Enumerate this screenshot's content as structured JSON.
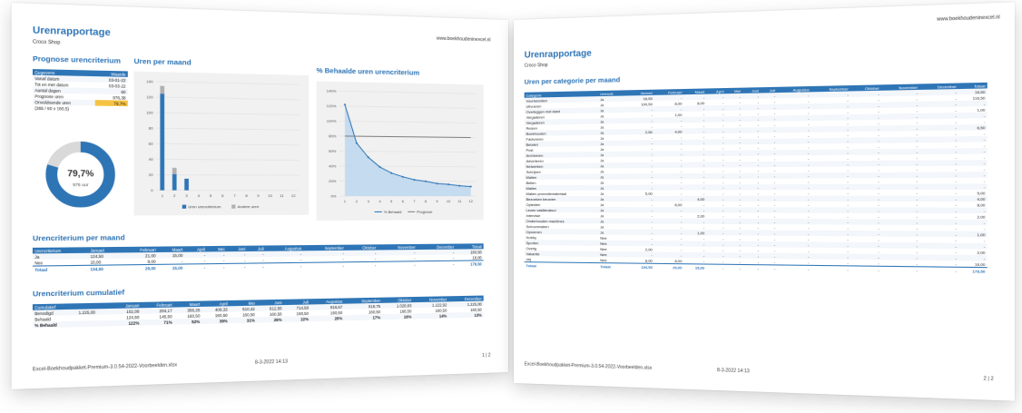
{
  "page1": {
    "title": "Urenrapportage",
    "company": "Croco Shop",
    "url": "www.boekhoudeninexcel.nl",
    "prognose_title": "Prognose urencriterium",
    "prognose_table": {
      "head": [
        "Gegevens",
        "Waarde"
      ],
      "rows": [
        [
          "Vanaf datum",
          "03-01-22"
        ],
        [
          "Tot en met datum",
          "03-03-22"
        ],
        [
          "Aantal dagen",
          "60"
        ],
        [
          "Prognose uren",
          "976,38"
        ],
        [
          "Onvoldoende uren",
          "79,7%"
        ],
        [
          "(365 / 60 x 160,5)",
          ""
        ]
      ]
    },
    "donut": {
      "percent_label": "79,7%",
      "sub_label": "976 uur",
      "fraction": 0.797,
      "color": "#2e75b6"
    },
    "chart1": {
      "title": "Uren per maand",
      "chart_data": {
        "type": "bar",
        "categories": [
          "1",
          "2",
          "3",
          "4",
          "5",
          "6",
          "7",
          "8",
          "9",
          "10",
          "11",
          "12"
        ],
        "yticks": [
          "0",
          "20",
          "40",
          "60",
          "80",
          "100",
          "120",
          "140"
        ],
        "ylim": [
          0,
          140
        ],
        "series": [
          {
            "name": "Uren urencriterium",
            "values": [
              124.5,
              21.0,
              15.0,
              0,
              0,
              0,
              0,
              0,
              0,
              0,
              0,
              0
            ],
            "color": "#2e75b6"
          },
          {
            "name": "Andere uren",
            "values": [
              10.0,
              8.0,
              0,
              0,
              0,
              0,
              0,
              0,
              0,
              0,
              0,
              0
            ],
            "color": "#b0b0b0"
          },
          {
            "name": "",
            "values": [
              0,
              0,
              0,
              0,
              0,
              0,
              0,
              0,
              0,
              0,
              0,
              0
            ],
            "color": "#c0504d"
          }
        ],
        "legend": "bottom"
      }
    },
    "chart2": {
      "title": "% Behaalde uren urencriterium",
      "chart_data": {
        "type": "area",
        "categories": [
          "1",
          "2",
          "3",
          "4",
          "5",
          "6",
          "7",
          "8",
          "9",
          "10",
          "11",
          "12"
        ],
        "yticks": [
          "0%",
          "20%",
          "40%",
          "60%",
          "80%",
          "100%",
          "120%",
          "140%"
        ],
        "ylim": [
          0,
          140
        ],
        "series": [
          {
            "name": "% Behaald",
            "values": [
              122,
              71,
              52,
              39,
              31,
              26,
              22,
              20,
              17,
              16,
              14,
              13
            ],
            "color": "#2e75b6"
          },
          {
            "name": "Prognose",
            "values": [
              80,
              80,
              80,
              80,
              80,
              80,
              80,
              80,
              80,
              80,
              80,
              80
            ],
            "color": "#7f7f7f"
          }
        ],
        "legend": "bottom"
      }
    },
    "per_maand_title": "Urencriterium per maand",
    "per_maand": {
      "head": [
        "Urencriterium",
        "Januari",
        "Februari",
        "Maart",
        "April",
        "Mei",
        "Juni",
        "Juli",
        "Augustus",
        "September",
        "Oktober",
        "November",
        "December",
        "Totaal"
      ],
      "rows": [
        [
          "Ja",
          "124,50",
          "21,00",
          "15,00",
          "-",
          "-",
          "-",
          "-",
          "-",
          "-",
          "-",
          "-",
          "-",
          "160,50"
        ],
        [
          "Nee",
          "10,00",
          "8,00",
          "-",
          "-",
          "-",
          "-",
          "-",
          "-",
          "-",
          "-",
          "-",
          "-",
          "18,00"
        ]
      ],
      "total": [
        "Totaal",
        "134,50",
        "29,00",
        "15,00",
        "-",
        "-",
        "-",
        "-",
        "-",
        "-",
        "-",
        "-",
        "-",
        "178,50"
      ]
    },
    "cumulatief_title": "Urencriterium cumulatief",
    "cumulatief": {
      "head": [
        "Cumulatief",
        "",
        "Januari",
        "Februari",
        "Maart",
        "April",
        "Mei",
        "Juni",
        "Juli",
        "Augustus",
        "September",
        "Oktober",
        "November",
        "December"
      ],
      "rows": [
        [
          "Benodigd",
          "1.225,00",
          "102,08",
          "204,17",
          "306,25",
          "408,33",
          "510,42",
          "612,50",
          "714,58",
          "816,67",
          "918,75",
          "1.020,83",
          "1.122,92",
          "1.225,00"
        ],
        [
          "Behaald",
          "",
          "124,50",
          "145,50",
          "160,50",
          "160,50",
          "160,50",
          "160,50",
          "160,50",
          "160,50",
          "160,50",
          "160,50",
          "160,50",
          "160,50"
        ],
        [
          "% Behaald",
          "",
          "122%",
          "71%",
          "52%",
          "39%",
          "31%",
          "26%",
          "22%",
          "20%",
          "17%",
          "16%",
          "14%",
          "13%"
        ]
      ]
    },
    "footer": {
      "file": "Excel-Boekhoudpakket-Premium-3.0.54-2022-Voorbeelden.xlsx",
      "date": "8-3-2022 14:13",
      "page": "1 | 2"
    }
  },
  "page2": {
    "title": "Urenrapportage",
    "company": "Croco Shop",
    "url": "www.boekhoudeninexcel.nl",
    "section": "Uren per categorie per maand",
    "table": {
      "head": [
        "Categorie",
        "Urencrit.",
        "Januari",
        "Februari",
        "Maart",
        "April",
        "Mei",
        "Juni",
        "Juli",
        "Augustus",
        "September",
        "Oktober",
        "November",
        "December",
        "Totaal"
      ],
      "rows": [
        [
          "Voorbereiden",
          "Ja",
          "16,50",
          "-",
          "-",
          "-",
          "-",
          "-",
          "-",
          "-",
          "-",
          "-",
          "-",
          "-",
          "16,50"
        ],
        [
          "Uitvoeren",
          "Ja",
          "100,50",
          "8,00",
          "8,00",
          "-",
          "-",
          "-",
          "-",
          "-",
          "-",
          "-",
          "-",
          "-",
          "116,50"
        ],
        [
          "Overleggen met klant",
          "Ja",
          "-",
          "-",
          "-",
          "-",
          "-",
          "-",
          "-",
          "-",
          "-",
          "-",
          "-",
          "-",
          "-"
        ],
        [
          "Vergaderen",
          "Ja",
          "-",
          "1,00",
          "-",
          "-",
          "-",
          "-",
          "-",
          "-",
          "-",
          "-",
          "-",
          "-",
          "1,00"
        ],
        [
          "Vergaderen",
          "Ja",
          "-",
          "-",
          "-",
          "-",
          "-",
          "-",
          "-",
          "-",
          "-",
          "-",
          "-",
          "-",
          "-"
        ],
        [
          "Reizen",
          "Ja",
          "-",
          "-",
          "-",
          "-",
          "-",
          "-",
          "-",
          "-",
          "-",
          "-",
          "-",
          "-",
          "-"
        ],
        [
          "Boekhouden",
          "Ja",
          "2,50",
          "4,00",
          "-",
          "-",
          "-",
          "-",
          "-",
          "-",
          "-",
          "-",
          "-",
          "-",
          "6,50"
        ],
        [
          "Factureren",
          "Ja",
          "-",
          "-",
          "-",
          "-",
          "-",
          "-",
          "-",
          "-",
          "-",
          "-",
          "-",
          "-",
          "-"
        ],
        [
          "Betalen",
          "Ja",
          "-",
          "-",
          "-",
          "-",
          "-",
          "-",
          "-",
          "-",
          "-",
          "-",
          "-",
          "-",
          "-"
        ],
        [
          "Post",
          "Ja",
          "-",
          "-",
          "-",
          "-",
          "-",
          "-",
          "-",
          "-",
          "-",
          "-",
          "-",
          "-",
          "-"
        ],
        [
          "Archiveren",
          "Ja",
          "-",
          "-",
          "-",
          "-",
          "-",
          "-",
          "-",
          "-",
          "-",
          "-",
          "-",
          "-",
          "-"
        ],
        [
          "Adverteren",
          "Ja",
          "-",
          "-",
          "-",
          "-",
          "-",
          "-",
          "-",
          "-",
          "-",
          "-",
          "-",
          "-",
          "-"
        ],
        [
          "Netwerken",
          "Ja",
          "-",
          "-",
          "-",
          "-",
          "-",
          "-",
          "-",
          "-",
          "-",
          "-",
          "-",
          "-",
          "-"
        ],
        [
          "Schrijven",
          "Ja",
          "-",
          "-",
          "-",
          "-",
          "-",
          "-",
          "-",
          "-",
          "-",
          "-",
          "-",
          "-",
          "-"
        ],
        [
          "Mailen",
          "Ja",
          "-",
          "-",
          "-",
          "-",
          "-",
          "-",
          "-",
          "-",
          "-",
          "-",
          "-",
          "-",
          "-"
        ],
        [
          "Bellen",
          "Ja",
          "-",
          "-",
          "-",
          "-",
          "-",
          "-",
          "-",
          "-",
          "-",
          "-",
          "-",
          "-",
          "-"
        ],
        [
          "Mailen",
          "Ja",
          "-",
          "-",
          "-",
          "-",
          "-",
          "-",
          "-",
          "-",
          "-",
          "-",
          "-",
          "-",
          "-"
        ],
        [
          "Maken promotiemateriaal",
          "Ja",
          "5,00",
          "-",
          "-",
          "-",
          "-",
          "-",
          "-",
          "-",
          "-",
          "-",
          "-",
          "-",
          "5,00"
        ],
        [
          "Bezoeken beurzen",
          "Ja",
          "-",
          "-",
          "4,00",
          "-",
          "-",
          "-",
          "-",
          "-",
          "-",
          "-",
          "-",
          "-",
          "4,00"
        ],
        [
          "Opleiden",
          "Ja",
          "-",
          "8,00",
          "-",
          "-",
          "-",
          "-",
          "-",
          "-",
          "-",
          "-",
          "-",
          "-",
          "8,00"
        ],
        [
          "Lezen vakliteratuur",
          "Ja",
          "-",
          "-",
          "-",
          "-",
          "-",
          "-",
          "-",
          "-",
          "-",
          "-",
          "-",
          "-",
          "-"
        ],
        [
          "Intervisie",
          "Ja",
          "-",
          "-",
          "2,00",
          "-",
          "-",
          "-",
          "-",
          "-",
          "-",
          "-",
          "-",
          "-",
          "2,00"
        ],
        [
          "Onderhouden machines",
          "Ja",
          "-",
          "-",
          "-",
          "-",
          "-",
          "-",
          "-",
          "-",
          "-",
          "-",
          "-",
          "-",
          "-"
        ],
        [
          "Schoonmaken",
          "Ja",
          "-",
          "-",
          "-",
          "-",
          "-",
          "-",
          "-",
          "-",
          "-",
          "-",
          "-",
          "-",
          "-"
        ],
        [
          "Opruimen",
          "Ja",
          "-",
          "-",
          "1,00",
          "-",
          "-",
          "-",
          "-",
          "-",
          "-",
          "-",
          "-",
          "-",
          "1,00"
        ],
        [
          "Hobby",
          "Nee",
          "-",
          "-",
          "-",
          "-",
          "-",
          "-",
          "-",
          "-",
          "-",
          "-",
          "-",
          "-",
          "-"
        ],
        [
          "Sporten",
          "Nee",
          "-",
          "-",
          "-",
          "-",
          "-",
          "-",
          "-",
          "-",
          "-",
          "-",
          "-",
          "-",
          "-"
        ],
        [
          "Overig",
          "Nee",
          "2,00",
          "-",
          "-",
          "-",
          "-",
          "-",
          "-",
          "-",
          "-",
          "-",
          "-",
          "-",
          "2,00"
        ],
        [
          "Vakantie",
          "Nee",
          "-",
          "-",
          "-",
          "-",
          "-",
          "-",
          "-",
          "-",
          "-",
          "-",
          "-",
          "-",
          "-"
        ],
        [
          "Vrij",
          "Nee",
          "8,00",
          "8,00",
          "-",
          "-",
          "-",
          "-",
          "-",
          "-",
          "-",
          "-",
          "-",
          "-",
          "16,00"
        ]
      ],
      "total": [
        "Totaal",
        "Totaal",
        "134,50",
        "29,00",
        "15,00",
        "-",
        "-",
        "-",
        "-",
        "-",
        "-",
        "-",
        "-",
        "-",
        "178,50"
      ]
    },
    "footer": {
      "file": "Excel-Boekhoudpakket-Premium-3.0.54-2022-Voorbeelden.xlsx",
      "date": "8-3-2022 14:13",
      "page": "2 | 2"
    }
  }
}
